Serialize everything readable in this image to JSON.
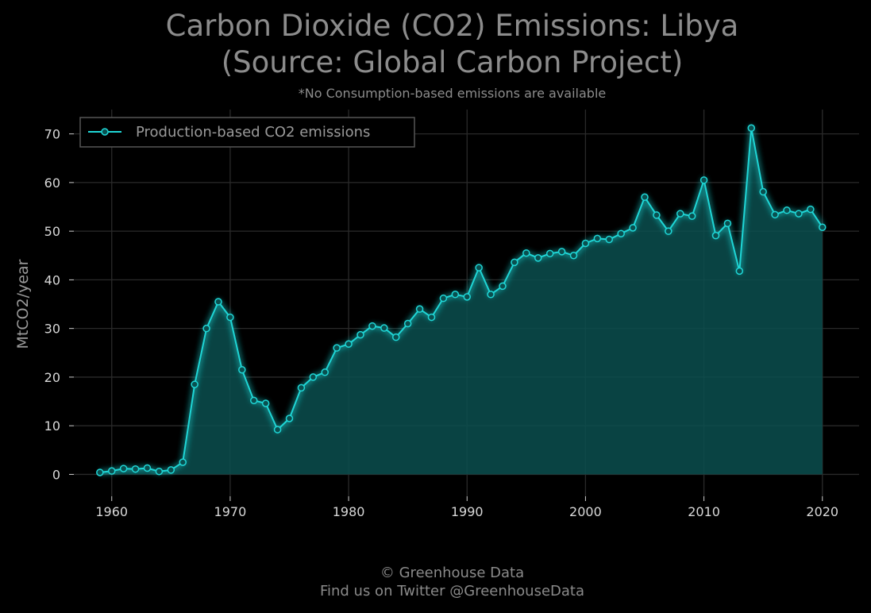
{
  "title_line1": "Carbon Dioxide (CO2) Emissions: Libya",
  "title_line2": "(Source: Global Carbon Project)",
  "subtitle": "*No Consumption-based emissions are available",
  "footer_line1": "© Greenhouse Data",
  "footer_line2": "Find us on Twitter @GreenhouseData",
  "colors": {
    "background": "#000000",
    "line": "#1fd6d6",
    "fill": "#0a4f4f",
    "grid": "#2a2a2a",
    "text": "#8a8a8a"
  },
  "chart_data": {
    "type": "area",
    "title": "Carbon Dioxide (CO2) Emissions: Libya (Source: Global Carbon Project)",
    "subtitle": "*No Consumption-based emissions are available",
    "xlabel": "",
    "ylabel": "MtCO2/year",
    "xlim": [
      1956.8,
      2023.1
    ],
    "ylim": [
      -4.5,
      75
    ],
    "xticks": [
      1960,
      1970,
      1980,
      1990,
      2000,
      2010,
      2020
    ],
    "yticks": [
      0,
      10,
      20,
      30,
      40,
      50,
      60,
      70
    ],
    "grid": true,
    "legend_position": "top-left",
    "series": [
      {
        "name": "Production-based CO2 emissions",
        "x": [
          1959,
          1960,
          1961,
          1962,
          1963,
          1964,
          1965,
          1966,
          1967,
          1968,
          1969,
          1970,
          1971,
          1972,
          1973,
          1974,
          1975,
          1976,
          1977,
          1978,
          1979,
          1980,
          1981,
          1982,
          1983,
          1984,
          1985,
          1986,
          1987,
          1988,
          1989,
          1990,
          1991,
          1992,
          1993,
          1994,
          1995,
          1996,
          1997,
          1998,
          1999,
          2000,
          2001,
          2002,
          2003,
          2004,
          2005,
          2006,
          2007,
          2008,
          2009,
          2010,
          2011,
          2012,
          2013,
          2014,
          2015,
          2016,
          2017,
          2018,
          2019,
          2020
        ],
        "values": [
          0.4,
          0.7,
          1.2,
          1.1,
          1.3,
          0.6,
          0.9,
          2.5,
          18.5,
          30.0,
          35.5,
          32.3,
          21.5,
          15.2,
          14.6,
          9.2,
          11.5,
          17.8,
          20.0,
          21.0,
          26.0,
          26.8,
          28.7,
          30.5,
          30.1,
          28.2,
          31.0,
          34.0,
          32.3,
          36.2,
          37.0,
          36.5,
          42.5,
          37.0,
          38.7,
          43.6,
          45.5,
          44.5,
          45.4,
          45.8,
          45.0,
          47.5,
          48.5,
          48.3,
          49.5,
          50.7,
          57.0,
          53.3,
          50.0,
          53.6,
          53.1,
          60.5,
          49.1,
          51.6,
          41.8,
          71.2,
          58.1,
          53.4,
          54.3,
          53.6,
          54.5,
          50.8
        ]
      }
    ]
  }
}
